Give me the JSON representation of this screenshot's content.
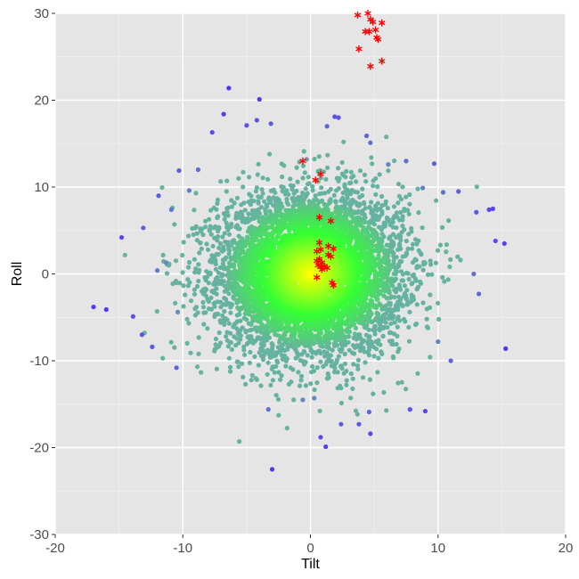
{
  "chart_data": {
    "type": "scatter",
    "title": "",
    "xlabel": "Tilt",
    "ylabel": "Roll",
    "xlim": [
      -20,
      20
    ],
    "ylim": [
      -30,
      30
    ],
    "x_ticks": [
      -20,
      -10,
      0,
      10,
      20
    ],
    "y_ticks": [
      -30,
      -20,
      -10,
      0,
      10,
      20,
      30
    ],
    "x_tick_labels": [
      "-20",
      "-10",
      "0",
      "10",
      "20"
    ],
    "y_tick_labels": [
      "-30",
      "-20",
      "-10",
      "0",
      "10",
      "20",
      "30"
    ],
    "grid": true,
    "legend": "none",
    "colors": {
      "panel_background": "#e5e5e5",
      "gridline": "#ffffff",
      "density_high": "#ffff00",
      "density_mid": "#33ff33",
      "density_low": "#66b2a0",
      "outlier": "#5533ff",
      "highlight": "#ff0000"
    },
    "cloud": {
      "center": [
        0,
        0
      ],
      "spread_x": 3.6,
      "spread_y": 4.6,
      "approx_count": 6000
    },
    "outliers": [
      [
        -17,
        -3.8
      ],
      [
        -16,
        -4.1
      ],
      [
        -14.8,
        4.2
      ],
      [
        -13.9,
        -4.9
      ],
      [
        -13.2,
        -7.0
      ],
      [
        -13.1,
        5.3
      ],
      [
        -12.4,
        -8.4
      ],
      [
        -11.9,
        9.0
      ],
      [
        -10.5,
        -10.8
      ],
      [
        -10.3,
        11.9
      ],
      [
        -7.7,
        16.3
      ],
      [
        -6.8,
        18.4
      ],
      [
        -6.4,
        21.4
      ],
      [
        -5.0,
        17.1
      ],
      [
        -4.2,
        17.7
      ],
      [
        -4.0,
        20.1
      ],
      [
        -3.0,
        -22.5
      ],
      [
        -3.1,
        17.3
      ],
      [
        -0.3,
        13.2
      ],
      [
        1.3,
        17.0
      ],
      [
        1.9,
        18.1
      ],
      [
        2.2,
        18.0
      ],
      [
        4.4,
        15.9
      ],
      [
        4.7,
        15.1
      ],
      [
        -3.3,
        -15.6
      ],
      [
        -0.6,
        -14.5
      ],
      [
        0.3,
        -14.3
      ],
      [
        0.8,
        -18.8
      ],
      [
        1.2,
        -19.9
      ],
      [
        2.4,
        -17.3
      ],
      [
        3.8,
        -17.3
      ],
      [
        4.6,
        -15.9
      ],
      [
        4.7,
        -18.4
      ],
      [
        7.8,
        -15.6
      ],
      [
        9.0,
        -15.8
      ],
      [
        9.7,
        12.7
      ],
      [
        10.4,
        9.4
      ],
      [
        11.6,
        9.5
      ],
      [
        13.0,
        7.1
      ],
      [
        14.0,
        7.4
      ],
      [
        14.3,
        7.5
      ],
      [
        14.5,
        3.8
      ],
      [
        12.8,
        0.0
      ],
      [
        13.2,
        -2.3
      ],
      [
        15.2,
        3.5
      ],
      [
        15.3,
        -8.6
      ],
      [
        10.0,
        -7.8
      ],
      [
        11.0,
        -10.0
      ],
      [
        -10.4,
        -4.4
      ],
      [
        -11.3,
        1.3
      ],
      [
        -12.0,
        0.4
      ],
      [
        -10.9,
        7.4
      ],
      [
        -9.5,
        9.6
      ],
      [
        -8.8,
        12.0
      ],
      [
        6.1,
        12.6
      ],
      [
        7.5,
        13.0
      ],
      [
        8.8,
        9.9
      ]
    ],
    "highlight_points": [
      [
        3.7,
        29.8
      ],
      [
        4.5,
        30.0
      ],
      [
        4.7,
        29.3
      ],
      [
        4.9,
        29.0
      ],
      [
        5.6,
        28.9
      ],
      [
        4.3,
        27.9
      ],
      [
        4.6,
        27.9
      ],
      [
        5.2,
        27.2
      ],
      [
        5.3,
        27.0
      ],
      [
        5.1,
        28.1
      ],
      [
        3.8,
        25.9
      ],
      [
        5.6,
        24.5
      ],
      [
        4.7,
        23.9
      ],
      [
        -0.6,
        13.0
      ],
      [
        0.4,
        10.8
      ],
      [
        0.8,
        11.5
      ],
      [
        0.7,
        6.5
      ],
      [
        1.6,
        6.1
      ],
      [
        0.7,
        3.6
      ],
      [
        1.4,
        3.2
      ],
      [
        1.8,
        2.9
      ],
      [
        0.5,
        2.6
      ],
      [
        0.8,
        2.8
      ],
      [
        1.4,
        2.2
      ],
      [
        1.6,
        2.0
      ],
      [
        0.5,
        1.5
      ],
      [
        0.7,
        1.7
      ],
      [
        0.9,
        1.3
      ],
      [
        0.6,
        1.0
      ],
      [
        0.8,
        0.8
      ],
      [
        1.1,
        0.9
      ],
      [
        0.9,
        0.5
      ],
      [
        1.3,
        0.7
      ],
      [
        0.5,
        -0.4
      ],
      [
        1.7,
        -1.0
      ],
      [
        1.8,
        -1.3
      ]
    ]
  }
}
